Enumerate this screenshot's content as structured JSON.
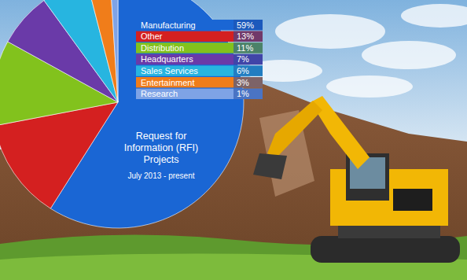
{
  "chart_data": {
    "type": "pie",
    "title": "Request for Information (RFI) Projects",
    "subtitle": "July 2013 - present",
    "categories": [
      "Manufacturing",
      "Other",
      "Distribution",
      "Headquarters",
      "Sales Services",
      "Entertainment",
      "Research"
    ],
    "values": [
      59,
      13,
      11,
      7,
      6,
      3,
      1
    ],
    "value_labels": [
      "59%",
      "13%",
      "11%",
      "7%",
      "6%",
      "3%",
      "1%"
    ],
    "colors": [
      "#1a66d4",
      "#d42020",
      "#82c21d",
      "#6a3aa8",
      "#27b5e0",
      "#f07d1a",
      "#7ea3e6"
    ]
  }
}
